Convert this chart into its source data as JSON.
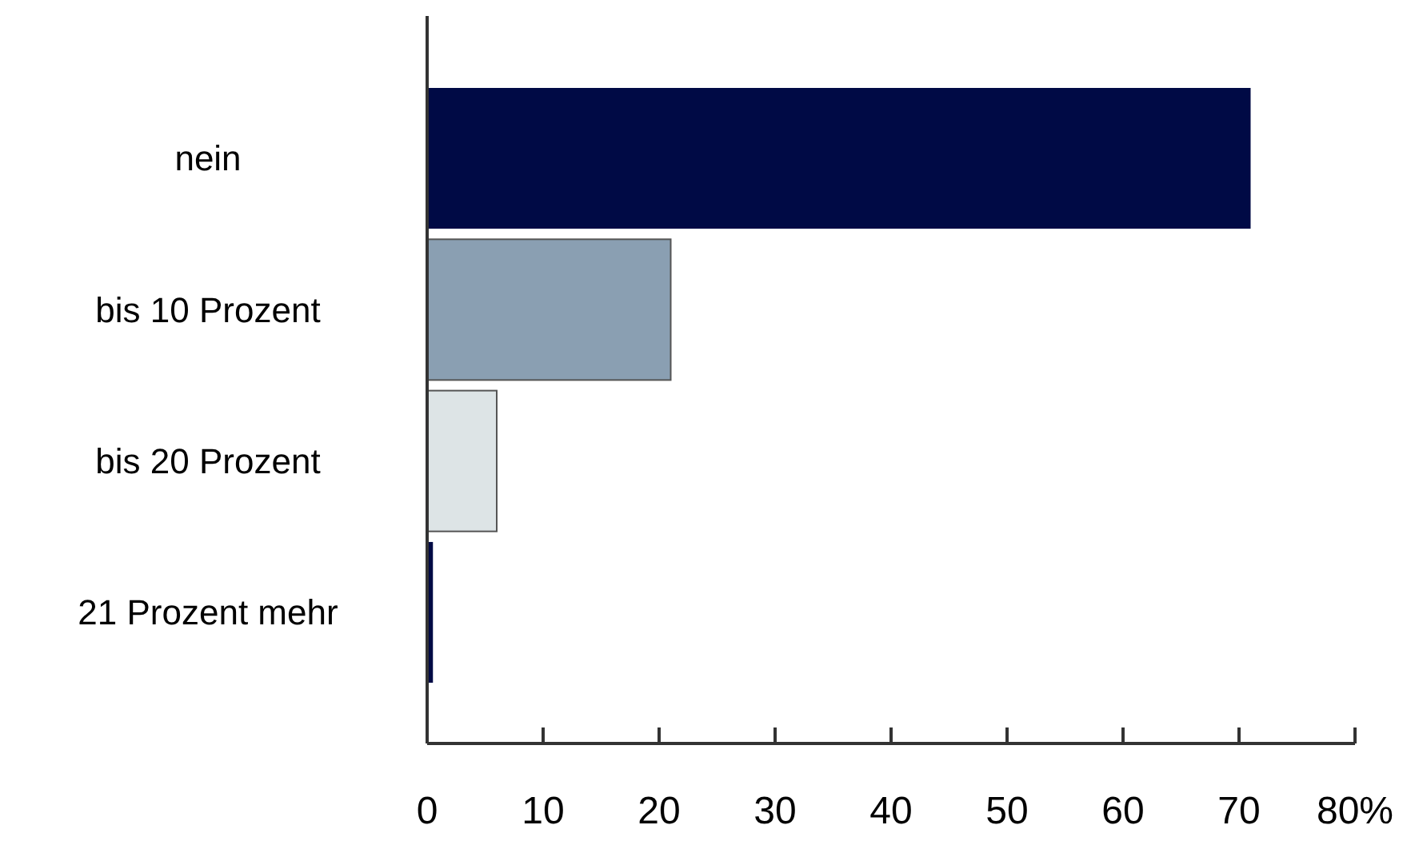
{
  "chart_data": {
    "type": "bar",
    "orientation": "horizontal",
    "categories": [
      "nein",
      "bis 10 Prozent",
      "bis 20 Prozent",
      "21 Prozent mehr"
    ],
    "values": [
      71,
      21,
      6,
      0.5
    ],
    "colors": [
      "#000a45",
      "#8a9fb2",
      "#dde4e6",
      "#000a45"
    ],
    "xlim": [
      0,
      80
    ],
    "xticks": [
      0,
      10,
      20,
      30,
      40,
      50,
      60,
      70,
      {
        "value": 80,
        "label": "80%"
      }
    ],
    "grid": false
  }
}
